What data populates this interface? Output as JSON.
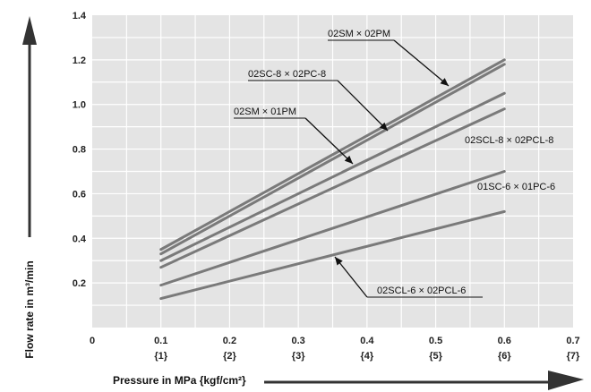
{
  "chart_data": {
    "type": "line",
    "title": "",
    "xlabel": "Pressure in MPa {kgf/cm²}",
    "ylabel": "Flow rate in m³/min",
    "xlim": [
      0,
      0.7
    ],
    "ylim": [
      0,
      1.4
    ],
    "x_ticks": [
      {
        "value": 0,
        "label": "0",
        "sub": ""
      },
      {
        "value": 0.1,
        "label": "0.1",
        "sub": "{1}"
      },
      {
        "value": 0.2,
        "label": "0.2",
        "sub": "{2}"
      },
      {
        "value": 0.3,
        "label": "0.3",
        "sub": "{3}"
      },
      {
        "value": 0.4,
        "label": "0.4",
        "sub": "{4}"
      },
      {
        "value": 0.5,
        "label": "0.5",
        "sub": "{5}"
      },
      {
        "value": 0.6,
        "label": "0.6",
        "sub": "{6}"
      },
      {
        "value": 0.7,
        "label": "0.7",
        "sub": "{7}"
      }
    ],
    "y_ticks": [
      {
        "value": 0.2,
        "label": "0.2"
      },
      {
        "value": 0.4,
        "label": "0.4"
      },
      {
        "value": 0.6,
        "label": "0.6"
      },
      {
        "value": 0.8,
        "label": "0.8"
      },
      {
        "value": 1.0,
        "label": "1.0"
      },
      {
        "value": 1.2,
        "label": "1.2"
      },
      {
        "value": 1.4,
        "label": "1.4"
      }
    ],
    "grid": true,
    "legend": "none",
    "series": [
      {
        "name": "02SM × 02PM",
        "x": [
          0.1,
          0.6
        ],
        "y": [
          0.35,
          1.2
        ]
      },
      {
        "name": "02SC-8 × 02PC-8",
        "x": [
          0.1,
          0.6
        ],
        "y": [
          0.33,
          1.18
        ]
      },
      {
        "name": "02SM × 01PM",
        "x": [
          0.1,
          0.6
        ],
        "y": [
          0.3,
          1.05
        ]
      },
      {
        "name": "02SCL-8 × 02PCL-8",
        "x": [
          0.1,
          0.6
        ],
        "y": [
          0.27,
          0.98
        ]
      },
      {
        "name": "01SC-6 × 01PC-6",
        "x": [
          0.1,
          0.6
        ],
        "y": [
          0.19,
          0.7
        ]
      },
      {
        "name": "02SCL-6 × 02PCL-6",
        "x": [
          0.1,
          0.6
        ],
        "y": [
          0.13,
          0.52
        ]
      }
    ],
    "colors": {
      "background": "#e4e4e4",
      "grid": "#ffffff",
      "line": "#7a7a7a",
      "arrow": "#333333"
    }
  }
}
